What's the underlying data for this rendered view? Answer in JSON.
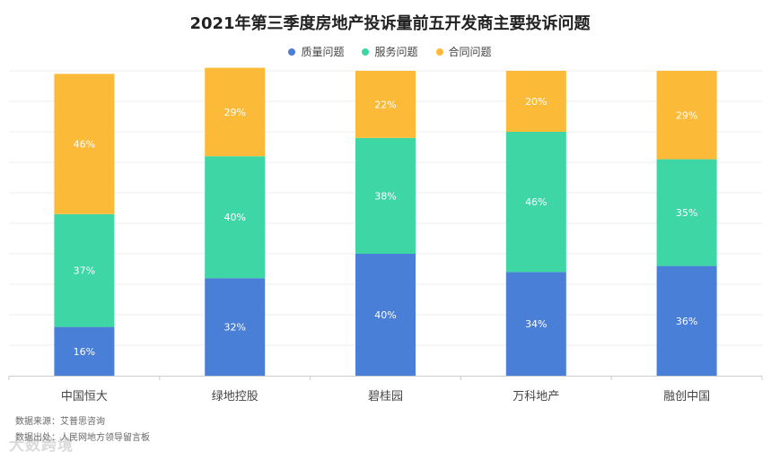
{
  "chart_data": {
    "type": "bar",
    "stacked": true,
    "title": "2021年第三季度房地产投诉量前五开发商主要投诉问题",
    "categories": [
      "中国恒大",
      "绿地控股",
      "碧桂园",
      "万科地产",
      "融创中国"
    ],
    "series": [
      {
        "name": "质量问题",
        "color": "#4a7fd8",
        "values": [
          16,
          32,
          40,
          34,
          36
        ],
        "labels": [
          "16%",
          "32%",
          "40%",
          "34%",
          "36%"
        ]
      },
      {
        "name": "服务问题",
        "color": "#3ed6a4",
        "values": [
          37,
          40,
          38,
          46,
          35
        ],
        "labels": [
          "37%",
          "40%",
          "38%",
          "46%",
          "35%"
        ]
      },
      {
        "name": "合同问题",
        "color": "#fbbb38",
        "values": [
          46,
          29,
          22,
          20,
          29
        ],
        "labels": [
          "46%",
          "29%",
          "22%",
          "20%",
          "29%"
        ]
      }
    ],
    "ylim": [
      0,
      100
    ],
    "grid": true,
    "legend": "top"
  },
  "footer": {
    "source": "数据来源：艾普思咨询",
    "origin": "数据出处：人民网地方领导留言板",
    "watermark": "大数跨境"
  }
}
